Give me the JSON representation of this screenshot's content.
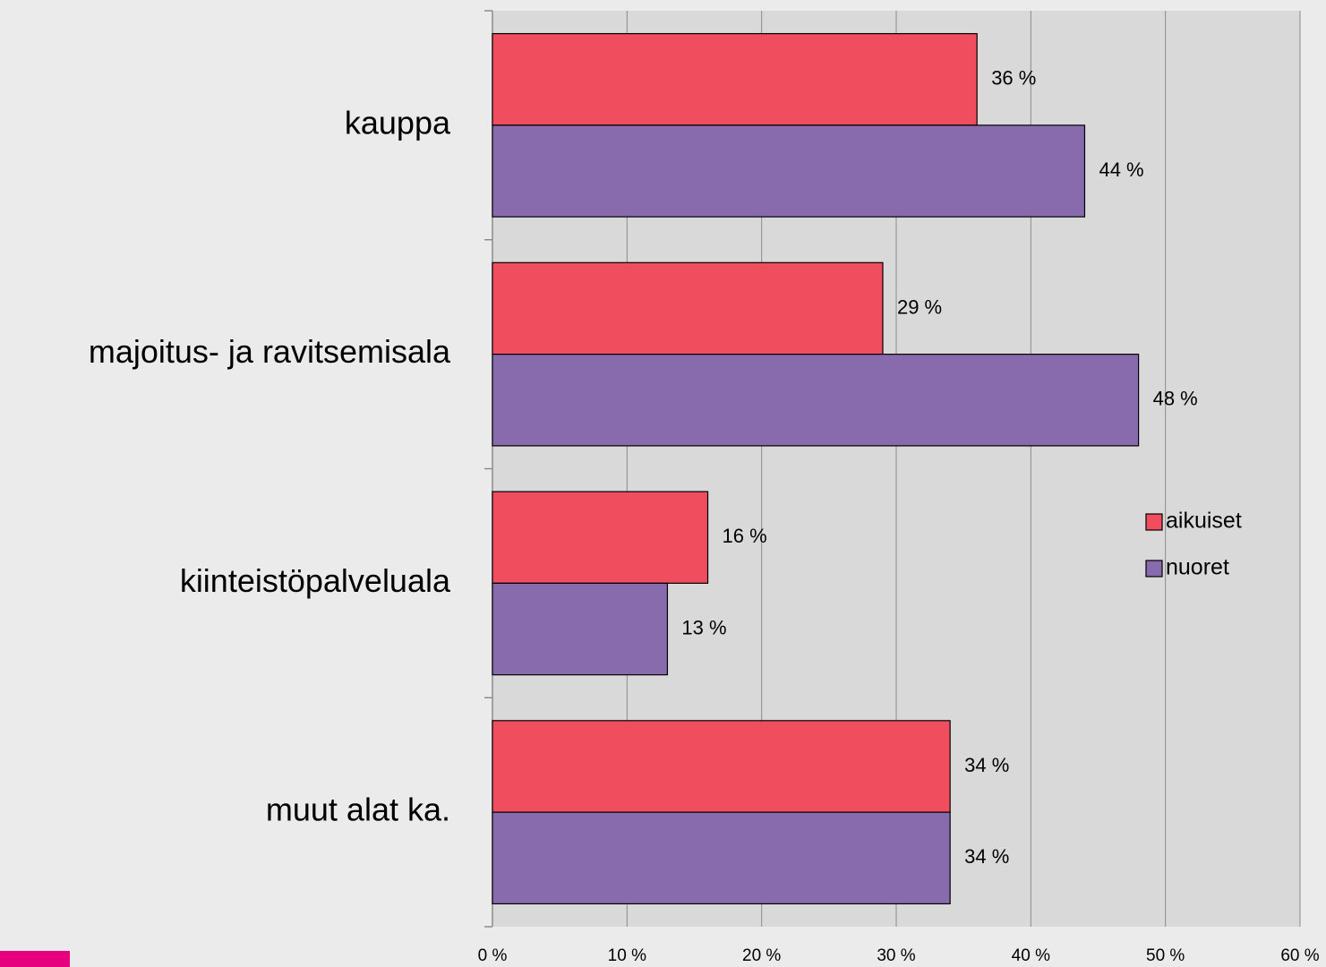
{
  "chart_data": {
    "type": "bar",
    "orientation": "horizontal",
    "categories": [
      "kauppa",
      "majoitus- ja ravitsemisala",
      "kiinteistöpalveluala",
      "muut alat ka."
    ],
    "series": [
      {
        "name": "aikuiset",
        "color": "#f04e5e",
        "values": [
          36,
          29,
          16,
          34
        ],
        "value_labels": [
          "36 %",
          "29 %",
          "16 %",
          "34 %"
        ]
      },
      {
        "name": "nuoret",
        "color": "#876bad",
        "values": [
          44,
          48,
          13,
          34
        ],
        "value_labels": [
          "44 %",
          "48 %",
          "13 %",
          "34 %"
        ]
      }
    ],
    "xlim": [
      0,
      60
    ],
    "xticks": [
      {
        "value": 0,
        "label": "0 %"
      },
      {
        "value": 10,
        "label": "10 %"
      },
      {
        "value": 20,
        "label": "20 %"
      },
      {
        "value": 30,
        "label": "30 %"
      },
      {
        "value": 40,
        "label": "40 %"
      },
      {
        "value": 50,
        "label": "50 %"
      },
      {
        "value": 60,
        "label": "60 %"
      }
    ],
    "grid": true,
    "legend": "right"
  }
}
